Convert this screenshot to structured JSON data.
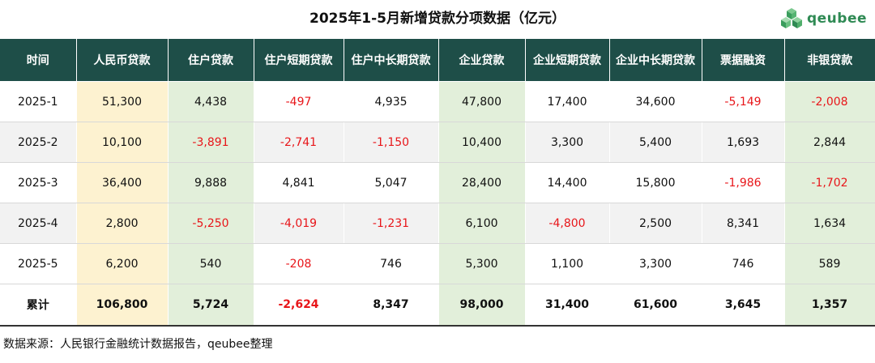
{
  "title": "2025年1-5月新增贷款分项数据（亿元）",
  "logo": {
    "icon": "cube-cluster-icon",
    "text": "qeubee",
    "color": "#2f8a54"
  },
  "colors": {
    "header_bg": "#1e4e48",
    "highlight_yellow": "#fdf2d0",
    "highlight_green": "#e2efda",
    "negative": "#e8161a"
  },
  "chart_data": {
    "type": "table",
    "columns": [
      "时间",
      "人民币贷款",
      "住户贷款",
      "住户短期贷款",
      "住户中长期贷款",
      "企业贷款",
      "企业短期贷款",
      "企业中长期贷款",
      "票据融资",
      "非银贷款"
    ],
    "rows": [
      [
        "2025-1",
        "51,300",
        "4,438",
        "-497",
        "4,935",
        "47,800",
        "17,400",
        "34,600",
        "-5,149",
        "-2,008"
      ],
      [
        "2025-2",
        "10,100",
        "-3,891",
        "-2,741",
        "-1,150",
        "10,400",
        "3,300",
        "5,400",
        "1,693",
        "2,844"
      ],
      [
        "2025-3",
        "36,400",
        "9,888",
        "4,841",
        "5,047",
        "28,400",
        "14,400",
        "15,800",
        "-1,986",
        "-1,702"
      ],
      [
        "2025-4",
        "2,800",
        "-5,250",
        "-4,019",
        "-1,231",
        "6,100",
        "-4,800",
        "2,500",
        "8,341",
        "1,634"
      ],
      [
        "2025-5",
        "6,200",
        "540",
        "-208",
        "746",
        "5,300",
        "1,100",
        "3,300",
        "746",
        "589"
      ]
    ],
    "total": [
      "累计",
      "106,800",
      "5,724",
      "-2,624",
      "8,347",
      "98,000",
      "31,400",
      "61,600",
      "3,645",
      "1,357"
    ],
    "highlight_columns": {
      "yellow": [
        1
      ],
      "green": [
        2,
        5,
        9
      ]
    }
  },
  "footer": "数据来源：人民银行金融统计数据报告，qeubee整理"
}
